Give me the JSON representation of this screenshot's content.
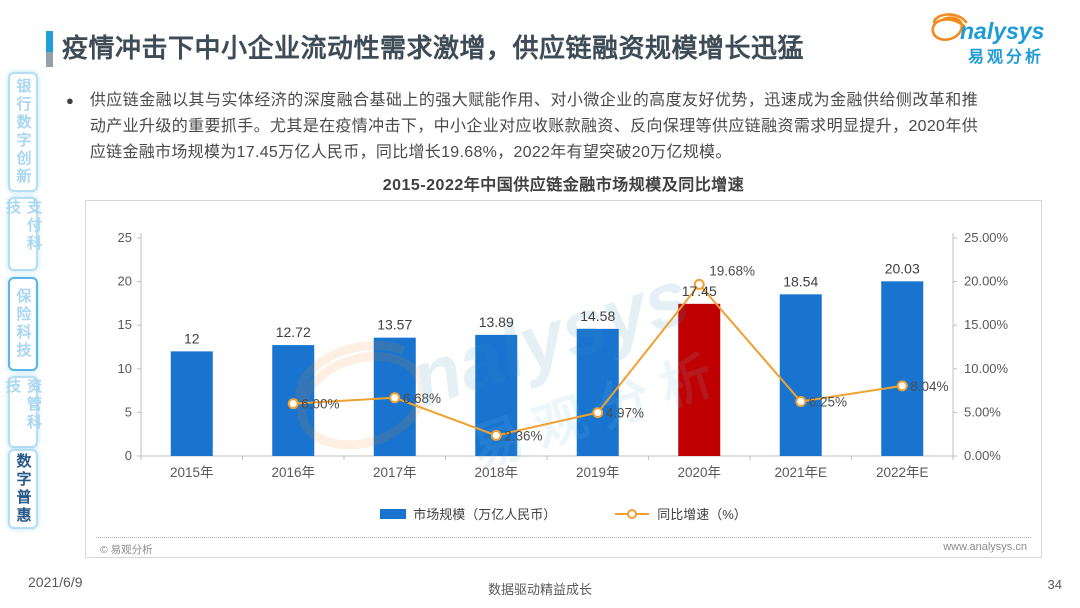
{
  "page": {
    "title": "疫情冲击下中小企业流动性需求激增，供应链融资规模增长迅猛",
    "date": "2021/6/9",
    "slogan": "数据驱动精益成长",
    "page_number": "34"
  },
  "logo": {
    "brand_latin": "nalysys",
    "brand_cn": "易观分析"
  },
  "sidebar": {
    "items": [
      {
        "label": "银行数字创新",
        "active": false
      },
      {
        "label": "支付科技",
        "active": false
      },
      {
        "label": "保险科技",
        "active": false,
        "highlighted": true
      },
      {
        "label": "资管科技",
        "active": false
      },
      {
        "label": "数字普惠",
        "active": true
      }
    ]
  },
  "bullet": {
    "marker": "●",
    "text": "供应链金融以其与实体经济的深度融合基础上的强大赋能作用、对小微企业的高度友好优势，迅速成为金融供给侧改革和推动产业升级的重要抓手。尤其是在疫情冲击下，中小企业对应收账款融资、反向保理等供应链融资需求明显提升，2020年供应链金融市场规模为17.45万亿人民币，同比增长19.68%，2022年有望突破20万亿规模。"
  },
  "chart": {
    "title": "2015-2022年中国供应链金融市场规模及同比增速",
    "legend_bar": "市场规模（万亿人民币）",
    "legend_line": "同比增速（%）",
    "copyright": "© 易观分析",
    "website": "www.analysys.cn",
    "watermark_latin": "nalysys",
    "watermark_cn": "易观分析"
  },
  "chart_data": {
    "type": "bar",
    "title": "2015-2022年中国供应链金融市场规模及同比增速",
    "categories": [
      "2015年",
      "2016年",
      "2017年",
      "2018年",
      "2019年",
      "2020年",
      "2021年E",
      "2022年E"
    ],
    "series": [
      {
        "name": "市场规模（万亿人民币）",
        "type": "bar",
        "values": [
          12,
          12.72,
          13.57,
          13.89,
          14.58,
          17.45,
          18.54,
          20.03
        ],
        "labels": [
          "12",
          "12.72",
          "13.57",
          "13.89",
          "14.58",
          "17.45",
          "18.54",
          "20.03"
        ],
        "color": "#1874CE",
        "highlight_index": 5,
        "highlight_color": "#C00000"
      },
      {
        "name": "同比增速（%）",
        "type": "line",
        "values": [
          null,
          6.0,
          6.68,
          2.36,
          4.97,
          19.68,
          6.25,
          8.04
        ],
        "labels": [
          null,
          "6.00%",
          "6.68%",
          "2.36%",
          "4.97%",
          "19.68%",
          "6.25%",
          "8.04%"
        ],
        "color": "#EFA131",
        "marker": "circle-open"
      }
    ],
    "y_left": {
      "min": 0,
      "max": 25,
      "ticks": [
        "0",
        "5",
        "10",
        "15",
        "20",
        "25"
      ]
    },
    "y_right": {
      "min": 0,
      "max": 25,
      "ticks": [
        "0.00%",
        "5.00%",
        "10.00%",
        "15.00%",
        "20.00%",
        "25.00%"
      ]
    },
    "grid": false,
    "legend_position": "bottom"
  },
  "colors": {
    "bar_blue": "#1874CE",
    "bar_red": "#C00000",
    "line_orange": "#EFA131",
    "accent_blue": "#1E9FD9",
    "logo_blue": "#1C9BD7",
    "logo_orange": "#F28A1E",
    "axis_text": "#595959",
    "axis_line": "#BFBFBF"
  }
}
